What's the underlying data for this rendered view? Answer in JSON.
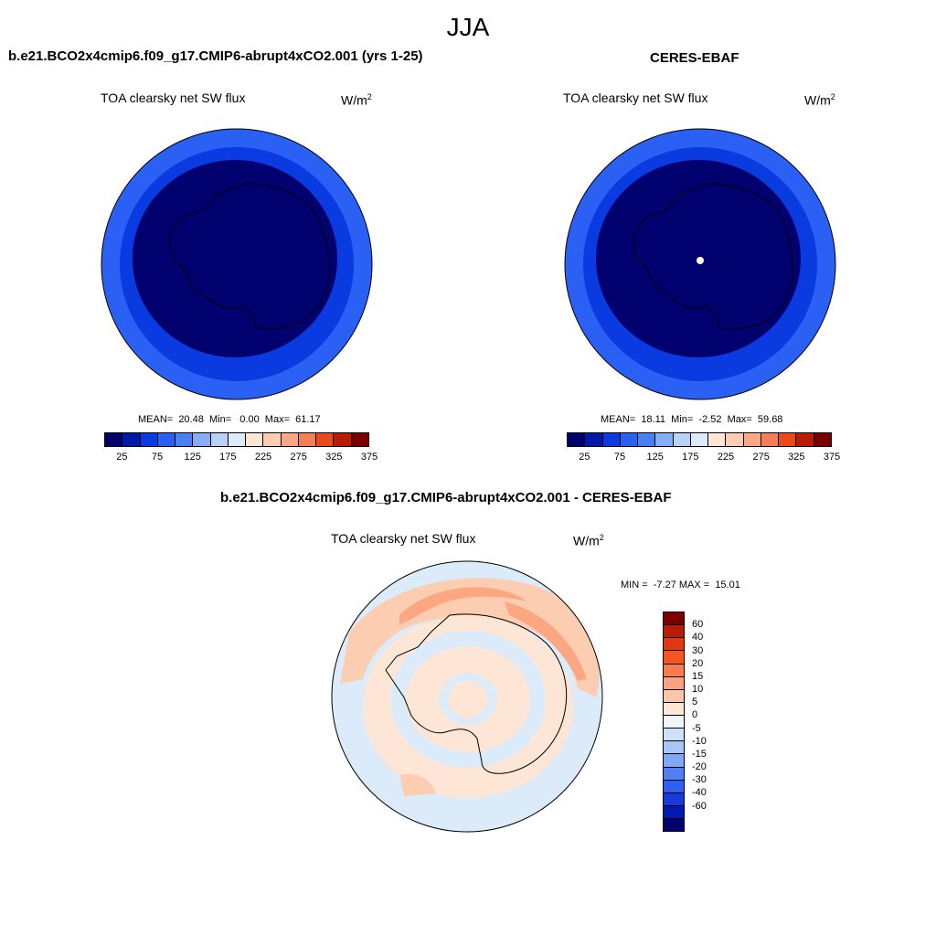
{
  "figure": {
    "season": "JJA"
  },
  "panels": {
    "model": {
      "title": "b.e21.BCO2x4cmip6.f09_g17.CMIP6-abrupt4xCO2.001 (yrs 1-25)",
      "variable": "TOA clearsky net SW flux",
      "units_base": "W/m",
      "units_exp": "2",
      "stats": "MEAN=  20.48  Min=   0.00  Max=  61.17"
    },
    "obs": {
      "title": "CERES-EBAF",
      "variable": "TOA clearsky net SW flux",
      "units_base": "W/m",
      "units_exp": "2",
      "stats": "MEAN=  18.11  Min=  -2.52  Max=  59.68"
    },
    "diff": {
      "title": "b.e21.BCO2x4cmip6.f09_g17.CMIP6-abrupt4xCO2.001 - CERES-EBAF",
      "variable": "TOA clearsky net SW flux",
      "units_base": "W/m",
      "units_exp": "2",
      "minmax": "MIN =  -7.27 MAX =  15.01"
    }
  },
  "colorbars": {
    "abs_colors": [
      "#00006e",
      "#0019a8",
      "#0a3be0",
      "#2b60f5",
      "#4a80f2",
      "#85aef5",
      "#b8d1f7",
      "#dcebfa",
      "#fde6d6",
      "#fccdb0",
      "#fba882",
      "#f57f55",
      "#e84a1c",
      "#b81c05",
      "#7a0000"
    ],
    "abs_labels": [
      "25",
      "75",
      "125",
      "175",
      "225",
      "275",
      "325",
      "375"
    ],
    "diff_colors": [
      "#7a0000",
      "#b81c05",
      "#e0390f",
      "#f5551f",
      "#fb7a4e",
      "#fca181",
      "#fdc5aa",
      "#fde6d6",
      "#f0f7fc",
      "#cde1f9",
      "#a9c7f6",
      "#7ea8f3",
      "#4d80f0",
      "#2d5ff2",
      "#1639e0",
      "#001ab0",
      "#00006e"
    ],
    "diff_labels": [
      "60",
      "40",
      "30",
      "20",
      "15",
      "10",
      "5",
      "0",
      "-5",
      "-10",
      "-15",
      "-20",
      "-30",
      "-40",
      "-60"
    ]
  },
  "map_colors": {
    "model_ring_outer": "#2b60f5",
    "model_ring_mid": "#0a3be0",
    "model_inner": "#00006e",
    "obs_ring_outer": "#2b60f5",
    "obs_ring_mid": "#0a3be0",
    "obs_inner": "#00006e",
    "diff_base": "#fde6d6",
    "diff_blue": "#dcebfa",
    "diff_warm": "#fba882",
    "diff_mid": "#fccdb0"
  }
}
